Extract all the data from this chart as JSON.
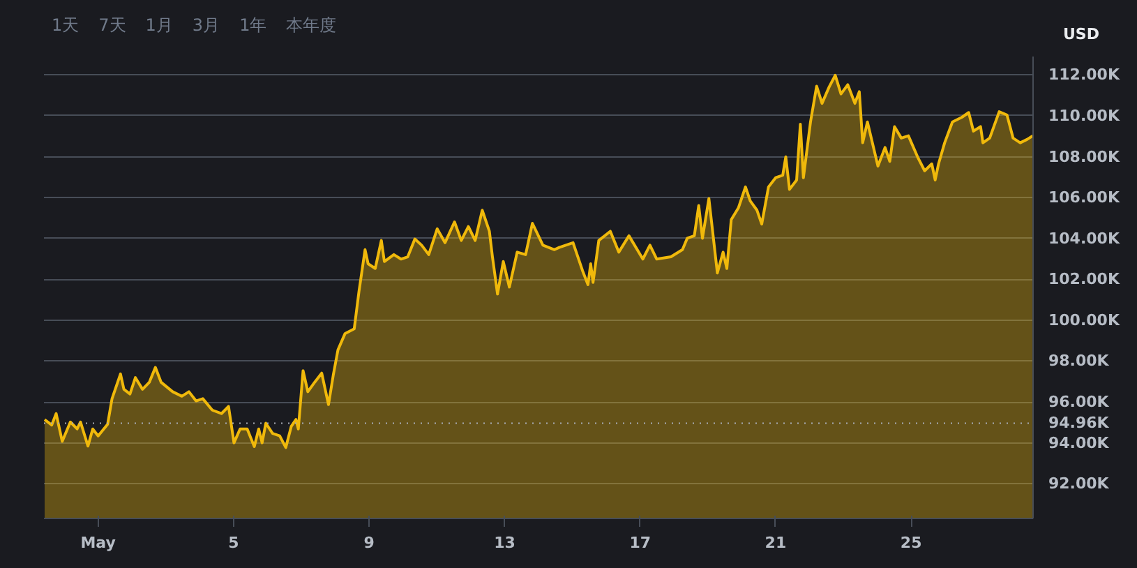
{
  "chart_data": {
    "type": "area",
    "ylabel": "USD",
    "annotations": [
      "1天",
      "7天",
      "1月",
      "3月",
      "1年",
      "本年度"
    ],
    "xlim": [
      -0.6,
      28.6
    ],
    "xticks": [
      {
        "value": 1,
        "label": "May"
      },
      5,
      9,
      13,
      17,
      21,
      25
    ],
    "ylim": [
      90.3,
      112.9
    ],
    "yticks": [
      {
        "value": 92,
        "label": "92.00K"
      },
      {
        "value": 94,
        "label": "94.00K"
      },
      {
        "value": 96,
        "label": "96.00K"
      },
      {
        "value": 98,
        "label": "98.00K"
      },
      {
        "value": 100,
        "label": "100.00K"
      },
      {
        "value": 102,
        "label": "102.00K"
      },
      {
        "value": 104,
        "label": "104.00K"
      },
      {
        "value": 106,
        "label": "106.00K"
      },
      {
        "value": 108,
        "label": "108.00K"
      },
      {
        "value": 110,
        "label": "110.00K"
      },
      {
        "value": 112,
        "label": "112.00K"
      }
    ],
    "grid": "y",
    "ref_lines": [
      {
        "axis": "y",
        "value": 94.96,
        "label": "94.96K",
        "color": "#a8acb6",
        "line_style": "dotted"
      }
    ],
    "x": [
      -0.58,
      -0.37,
      -0.24,
      -0.06,
      0.18,
      0.38,
      0.48,
      0.7,
      0.84,
      1.0,
      1.28,
      1.41,
      1.66,
      1.76,
      1.94,
      2.1,
      2.31,
      2.51,
      2.69,
      2.86,
      3.2,
      3.47,
      3.68,
      3.89,
      4.09,
      4.37,
      4.64,
      4.85,
      5.01,
      5.19,
      5.4,
      5.61,
      5.74,
      5.84,
      5.95,
      6.15,
      6.36,
      6.54,
      6.7,
      6.84,
      6.91,
      7.05,
      7.19,
      7.39,
      7.6,
      7.8,
      7.94,
      8.08,
      8.29,
      8.56,
      8.7,
      8.88,
      8.97,
      9.18,
      9.36,
      9.45,
      9.73,
      9.94,
      10.14,
      10.35,
      10.55,
      10.76,
      11.01,
      11.24,
      11.52,
      11.72,
      11.93,
      12.13,
      12.34,
      12.55,
      12.64,
      12.79,
      12.96,
      13.14,
      13.37,
      13.62,
      13.82,
      14.13,
      14.47,
      14.61,
      15.02,
      15.3,
      15.46,
      15.54,
      15.61,
      15.78,
      16.12,
      16.37,
      16.67,
      17.08,
      17.29,
      17.49,
      17.91,
      18.25,
      18.39,
      18.6,
      18.73,
      18.84,
      19.03,
      19.28,
      19.45,
      19.56,
      19.69,
      19.9,
      20.11,
      20.25,
      20.45,
      20.59,
      20.79,
      21.0,
      21.21,
      21.3,
      21.41,
      21.62,
      21.73,
      21.82,
      22.03,
      22.21,
      22.37,
      22.58,
      22.76,
      22.93,
      23.13,
      23.34,
      23.47,
      23.57,
      23.71,
      24.02,
      24.23,
      24.37,
      24.51,
      24.71,
      24.92,
      25.19,
      25.4,
      25.61,
      25.71,
      25.81,
      25.99,
      26.22,
      26.5,
      26.7,
      26.84,
      27.05,
      27.12,
      27.32,
      27.6,
      27.83,
      28.01,
      28.22,
      28.42,
      28.59
    ],
    "series": [
      {
        "color": "#f0b90b",
        "values": [
          95.14,
          94.87,
          95.43,
          94.07,
          95.02,
          94.68,
          95.02,
          93.84,
          94.68,
          94.34,
          94.91,
          96.16,
          97.37,
          96.62,
          96.39,
          97.19,
          96.62,
          96.96,
          97.69,
          96.96,
          96.5,
          96.28,
          96.5,
          96.05,
          96.16,
          95.6,
          95.43,
          95.78,
          94.0,
          94.68,
          94.68,
          93.82,
          94.68,
          94.0,
          94.96,
          94.46,
          94.34,
          93.77,
          94.8,
          95.14,
          94.68,
          97.53,
          96.5,
          96.96,
          97.41,
          95.87,
          97.3,
          98.55,
          99.35,
          99.58,
          101.4,
          103.45,
          102.76,
          102.53,
          103.9,
          102.87,
          103.21,
          102.99,
          103.1,
          103.97,
          103.67,
          103.21,
          104.47,
          103.79,
          104.81,
          103.9,
          104.58,
          103.9,
          105.38,
          104.35,
          103.1,
          101.28,
          102.87,
          101.62,
          103.33,
          103.21,
          104.74,
          103.67,
          103.45,
          103.56,
          103.79,
          102.42,
          101.74,
          102.76,
          101.85,
          103.9,
          104.35,
          103.33,
          104.13,
          102.99,
          103.67,
          102.99,
          103.1,
          103.45,
          104.01,
          104.13,
          105.61,
          104.01,
          105.95,
          102.31,
          103.33,
          102.53,
          104.92,
          105.49,
          106.52,
          105.84,
          105.38,
          104.7,
          106.52,
          106.97,
          107.09,
          107.99,
          106.4,
          106.86,
          109.59,
          106.97,
          109.7,
          111.45,
          110.61,
          111.41,
          111.98,
          111.07,
          111.52,
          110.61,
          111.18,
          108.68,
          109.7,
          107.54,
          108.45,
          107.77,
          109.47,
          108.91,
          109.02,
          107.99,
          107.31,
          107.65,
          106.86,
          107.65,
          108.68,
          109.7,
          109.93,
          110.16,
          109.25,
          109.47,
          108.68,
          108.91,
          110.2,
          110.04,
          108.91,
          108.68,
          108.84,
          109.02
        ]
      }
    ]
  }
}
